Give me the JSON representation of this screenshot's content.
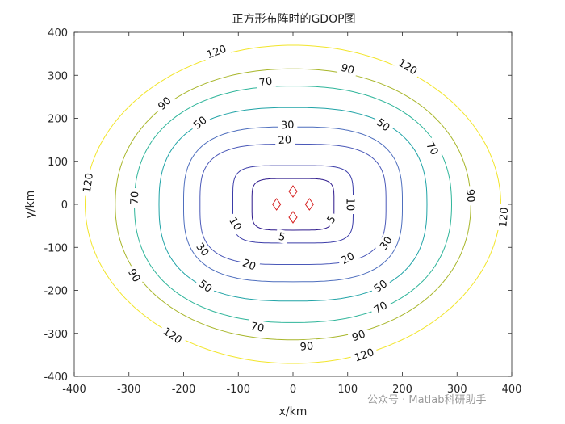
{
  "watermark": "公众号 · Matlab科研助手",
  "chart_data": {
    "type": "contour",
    "title": "正方形布阵时的GDOP图",
    "xlabel": "x/km",
    "ylabel": "y/km",
    "xlim": [
      -400,
      400
    ],
    "ylim": [
      -400,
      400
    ],
    "xticks": [
      -400,
      -300,
      -200,
      -100,
      0,
      100,
      200,
      300,
      400
    ],
    "yticks": [
      -400,
      -300,
      -200,
      -100,
      0,
      100,
      200,
      300,
      400
    ],
    "grid": false,
    "colors": {
      "c5": "#2e1a8c",
      "c10": "#3b3ca8",
      "c20": "#4a58b8",
      "c30": "#4f6fbe",
      "c50": "#1fa3a6",
      "c70": "#2fb59a",
      "c90": "#a8b62a",
      "c120": "#f2e52a",
      "station": "#d62020"
    },
    "stations": [
      {
        "x": 0,
        "y": 30
      },
      {
        "x": 30,
        "y": 0
      },
      {
        "x": 0,
        "y": -30
      },
      {
        "x": -30,
        "y": 0
      }
    ],
    "levels": [
      {
        "value": 5,
        "label": "5",
        "color_key": "c5",
        "a": 75,
        "b": 60,
        "n": 5,
        "labels": [
          {
            "x": 70,
            "y": -35
          },
          {
            "x": -20,
            "y": -75
          }
        ]
      },
      {
        "value": 10,
        "label": "10",
        "color_key": "c10",
        "a": 110,
        "b": 90,
        "n": 5,
        "labels": [
          {
            "x": 105,
            "y": 0
          },
          {
            "x": -105,
            "y": -45
          }
        ]
      },
      {
        "value": 20,
        "label": "20",
        "color_key": "c20",
        "a": 170,
        "b": 140,
        "n": 3.4,
        "labels": [
          {
            "x": -15,
            "y": 150
          },
          {
            "x": 100,
            "y": -125
          },
          {
            "x": -80,
            "y": -140
          }
        ]
      },
      {
        "value": 30,
        "label": "30",
        "color_key": "c30",
        "a": 200,
        "b": 180,
        "n": 3,
        "labels": [
          {
            "x": -10,
            "y": 185
          },
          {
            "x": 170,
            "y": -90
          },
          {
            "x": -165,
            "y": -105
          }
        ]
      },
      {
        "value": 50,
        "label": "50",
        "color_key": "c50",
        "a": 245,
        "b": 225,
        "n": 2.6,
        "labels": [
          {
            "x": -170,
            "y": 190
          },
          {
            "x": 165,
            "y": 185
          },
          {
            "x": 160,
            "y": -190
          },
          {
            "x": -160,
            "y": -190
          }
        ]
      },
      {
        "value": 70,
        "label": "70",
        "color_key": "c70",
        "a": 290,
        "b": 275,
        "n": 2.3,
        "labels": [
          {
            "x": -50,
            "y": 285
          },
          {
            "x": 255,
            "y": 130
          },
          {
            "x": -290,
            "y": 15
          },
          {
            "x": 160,
            "y": -240
          },
          {
            "x": -65,
            "y": -285
          }
        ]
      },
      {
        "value": 90,
        "label": "90",
        "color_key": "c90",
        "a": 325,
        "b": 315,
        "n": 2.15,
        "labels": [
          {
            "x": 100,
            "y": 315
          },
          {
            "x": -235,
            "y": 235
          },
          {
            "x": 325,
            "y": 20
          },
          {
            "x": -290,
            "y": -165
          },
          {
            "x": 120,
            "y": -305
          },
          {
            "x": 25,
            "y": -330
          }
        ]
      },
      {
        "value": 120,
        "label": "120",
        "color_key": "c120",
        "a": 380,
        "b": 370,
        "n": 2,
        "labels": [
          {
            "x": -140,
            "y": 355
          },
          {
            "x": 210,
            "y": 320
          },
          {
            "x": -375,
            "y": 50
          },
          {
            "x": 385,
            "y": -30
          },
          {
            "x": -220,
            "y": -305
          },
          {
            "x": 130,
            "y": -350
          }
        ]
      }
    ]
  }
}
